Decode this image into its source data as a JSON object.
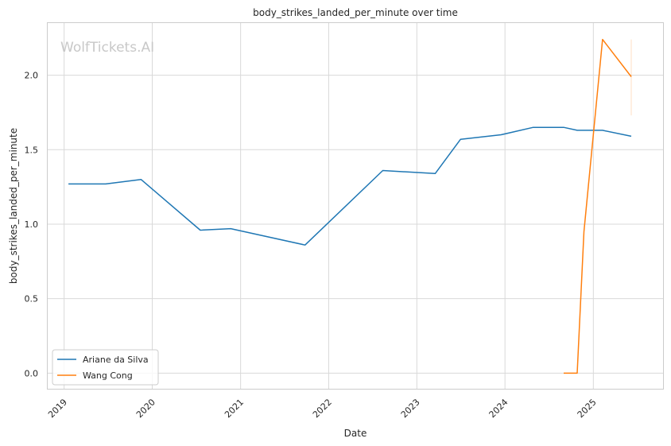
{
  "chart_data": {
    "type": "line",
    "title": "body_strikes_landed_per_minute over time",
    "xlabel": "Date",
    "ylabel": "body_strikes_landed_per_minute",
    "watermark": "WolfTickets.AI",
    "x_ticks": [
      "2019",
      "2020",
      "2021",
      "2022",
      "2023",
      "2024",
      "2025"
    ],
    "y_ticks": [
      "0.0",
      "0.5",
      "1.0",
      "1.5",
      "2.0"
    ],
    "xlim": [
      "2018-10-25",
      "2025-10-20"
    ],
    "ylim": [
      -0.11,
      2.35
    ],
    "grid": true,
    "legend": "lower-left",
    "series": [
      {
        "name": "Ariane da Silva",
        "color": "#1f77b4",
        "points": [
          [
            "2019-01-19",
            1.27
          ],
          [
            "2019-06-22",
            1.27
          ],
          [
            "2019-11-16",
            1.3
          ],
          [
            "2020-07-18",
            0.96
          ],
          [
            "2020-11-21",
            0.97
          ],
          [
            "2021-09-25",
            0.86
          ],
          [
            "2022-08-13",
            1.36
          ],
          [
            "2023-03-18",
            1.34
          ],
          [
            "2023-07-01",
            1.57
          ],
          [
            "2023-12-16",
            1.6
          ],
          [
            "2024-04-27",
            1.65
          ],
          [
            "2024-08-31",
            1.65
          ],
          [
            "2024-10-26",
            1.63
          ],
          [
            "2025-02-08",
            1.63
          ],
          [
            "2025-06-07",
            1.59
          ]
        ]
      },
      {
        "name": "Wang Cong",
        "color": "#ff7f0e",
        "points": [
          [
            "2024-08-31",
            0.0
          ],
          [
            "2024-10-26",
            0.0
          ],
          [
            "2024-11-23",
            0.95
          ],
          [
            "2025-02-08",
            2.24
          ],
          [
            "2025-06-07",
            1.99
          ]
        ],
        "error_band": {
          "x": "2025-06-07",
          "low": 1.73,
          "high": 2.24
        }
      }
    ]
  }
}
